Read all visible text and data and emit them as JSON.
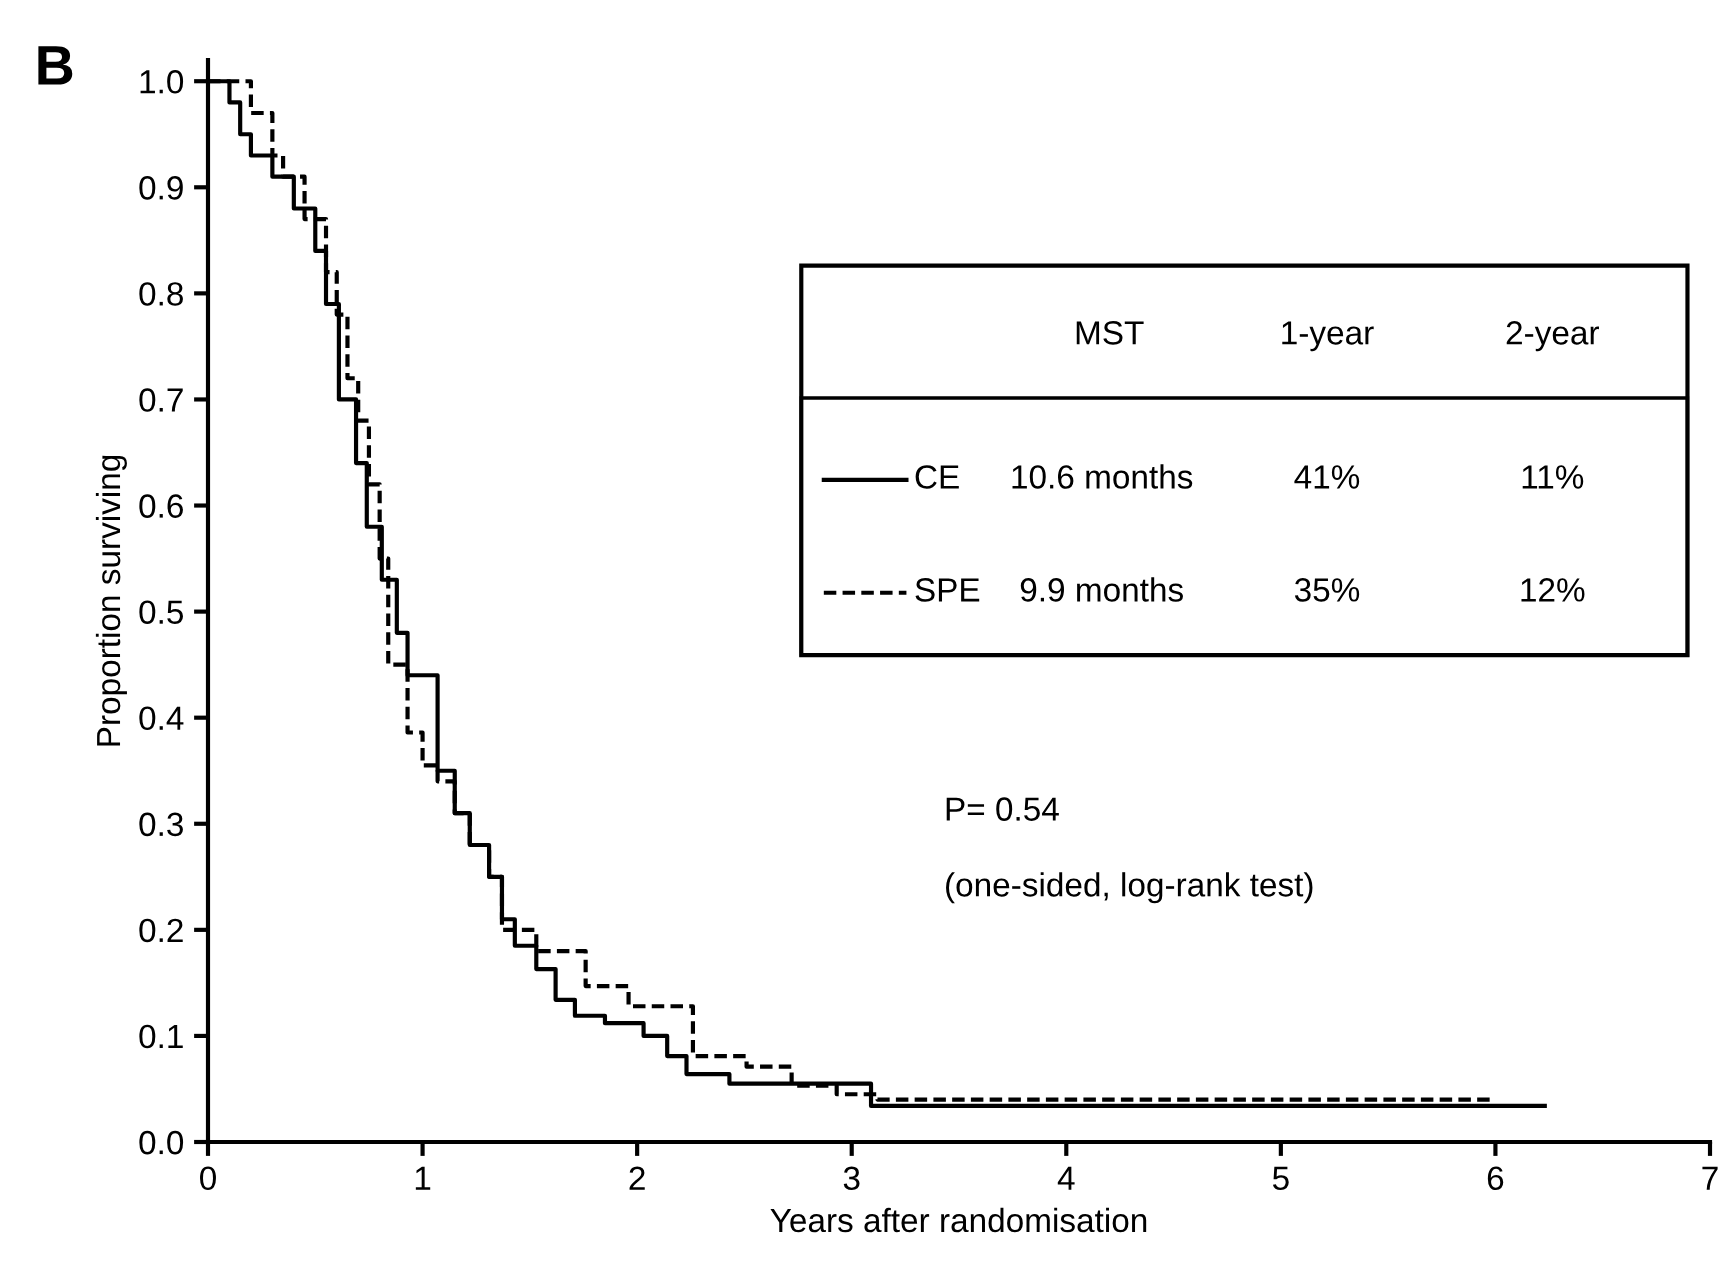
{
  "chart_data": {
    "type": "step",
    "xlabel": "Years after randomisation",
    "ylabel": "Proportion surviving",
    "xlim": [
      0,
      7
    ],
    "ylim": [
      0,
      1.02
    ],
    "xticks": [
      0,
      1,
      2,
      3,
      4,
      5,
      6,
      7
    ],
    "yticks": [
      {
        "value": 0,
        "label": "0.0"
      },
      {
        "value": 0.1,
        "label": "0.1"
      },
      {
        "value": 0.2,
        "label": "0.2"
      },
      {
        "value": 0.3,
        "label": "0.3"
      },
      {
        "value": 0.4,
        "label": "0.4"
      },
      {
        "value": 0.5,
        "label": "0.5"
      },
      {
        "value": 0.6,
        "label": "0.6"
      },
      {
        "value": 0.7,
        "label": "0.7"
      },
      {
        "value": 0.8,
        "label": "0.8"
      },
      {
        "value": 0.9,
        "label": "0.9"
      },
      {
        "value": 1,
        "label": "1.0"
      }
    ],
    "grid": false,
    "legend": "top right",
    "marker": "none",
    "series": [
      {
        "name": "CE",
        "color": "#000000",
        "line_style": "solid",
        "x": [
          0,
          0.1,
          0.15,
          0.2,
          0.3,
          0.4,
          0.5,
          0.55,
          0.61,
          0.69,
          0.74,
          0.81,
          0.88,
          0.93,
          0.99,
          1.07,
          1.15,
          1.22,
          1.31,
          1.37,
          1.43,
          1.53,
          1.62,
          1.71,
          1.85,
          2.03,
          2.14,
          2.23,
          2.43,
          3.09,
          6.23
        ],
        "values": [
          1.0,
          0.98,
          0.95,
          0.93,
          0.91,
          0.88,
          0.84,
          0.79,
          0.7,
          0.64,
          0.58,
          0.53,
          0.48,
          0.44,
          0.44,
          0.35,
          0.31,
          0.28,
          0.25,
          0.21,
          0.185,
          0.163,
          0.134,
          0.119,
          0.112,
          0.1,
          0.081,
          0.064,
          0.055,
          0.034,
          0.034
        ]
      },
      {
        "name": "SPE",
        "color": "#000000",
        "line_style": "dashed",
        "x": [
          0,
          0.2,
          0.3,
          0.35,
          0.45,
          0.55,
          0.6,
          0.65,
          0.7,
          0.75,
          0.8,
          0.84,
          0.93,
          1.0,
          1.07,
          1.15,
          1.22,
          1.31,
          1.37,
          1.53,
          1.76,
          1.96,
          2.26,
          2.51,
          2.72,
          2.93,
          3.12,
          6.0
        ],
        "values": [
          1.0,
          0.97,
          0.93,
          0.91,
          0.87,
          0.82,
          0.78,
          0.72,
          0.68,
          0.62,
          0.55,
          0.45,
          0.386,
          0.355,
          0.34,
          0.31,
          0.28,
          0.25,
          0.2,
          0.18,
          0.147,
          0.128,
          0.081,
          0.071,
          0.053,
          0.045,
          0.04,
          0.04
        ]
      }
    ],
    "annotations": [
      "MST",
      "1-year",
      "2-year",
      "10.6 months",
      "41%",
      "11%",
      "9.9 months",
      "35%",
      "12%",
      "P= 0.54",
      "(one-sided, log-rank test)",
      "B"
    ]
  }
}
